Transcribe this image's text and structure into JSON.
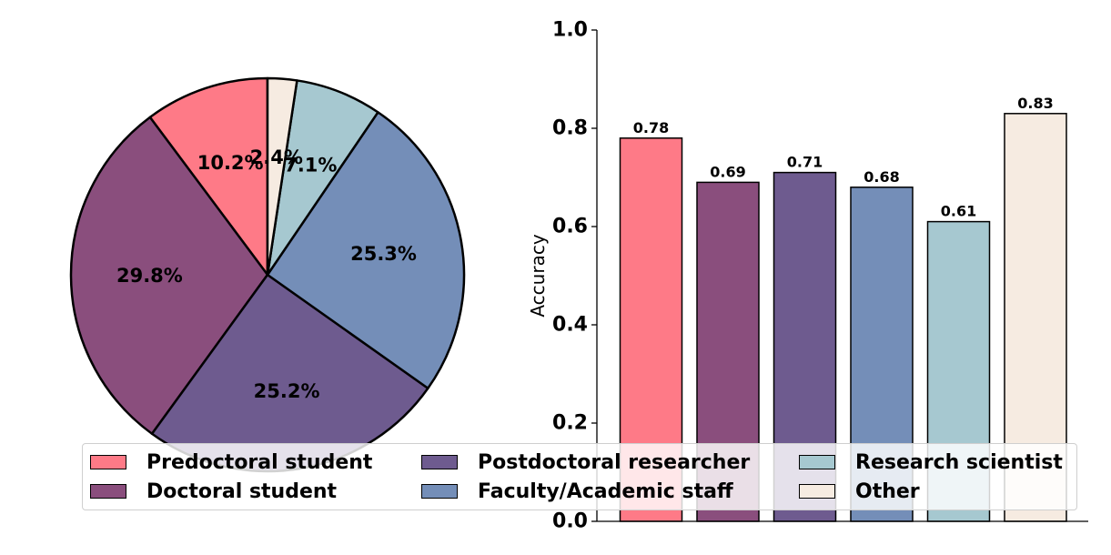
{
  "chart_data": [
    {
      "type": "pie",
      "categories": [
        "Predoctoral student",
        "Doctoral student",
        "Postdoctoral researcher",
        "Faculty/Academic staff",
        "Research scientist",
        "Other"
      ],
      "values": [
        10.2,
        29.8,
        25.2,
        25.3,
        7.1,
        2.4
      ],
      "labels": [
        "10.2%",
        "29.8%",
        "25.2%",
        "25.3%",
        "7.1%",
        "2.4%"
      ],
      "start": "top, counterclockwise"
    },
    {
      "type": "bar",
      "categories": [
        "Predoctoral student",
        "Doctoral student",
        "Postdoctoral researcher",
        "Faculty/Academic staff",
        "Research scientist",
        "Other"
      ],
      "values": [
        0.78,
        0.69,
        0.71,
        0.68,
        0.61,
        0.83
      ],
      "value_labels": [
        "0.78",
        "0.69",
        "0.71",
        "0.68",
        "0.61",
        "0.83"
      ],
      "ylabel": "Accuracy",
      "ylim": [
        0,
        1.0
      ],
      "yticks": [
        "0.0",
        "0.2",
        "0.4",
        "0.6",
        "0.8",
        "1.0"
      ],
      "grid": false
    }
  ],
  "colors": [
    "#fe7a87",
    "#8a4e7d",
    "#6e5b8f",
    "#748eb8",
    "#a6c8d0",
    "#f6ebe1"
  ],
  "legend": {
    "placement": "bottom-center",
    "items": [
      "Predoctoral student",
      "Doctoral student",
      "Postdoctoral researcher",
      "Faculty/Academic staff",
      "Research scientist",
      "Other"
    ]
  }
}
